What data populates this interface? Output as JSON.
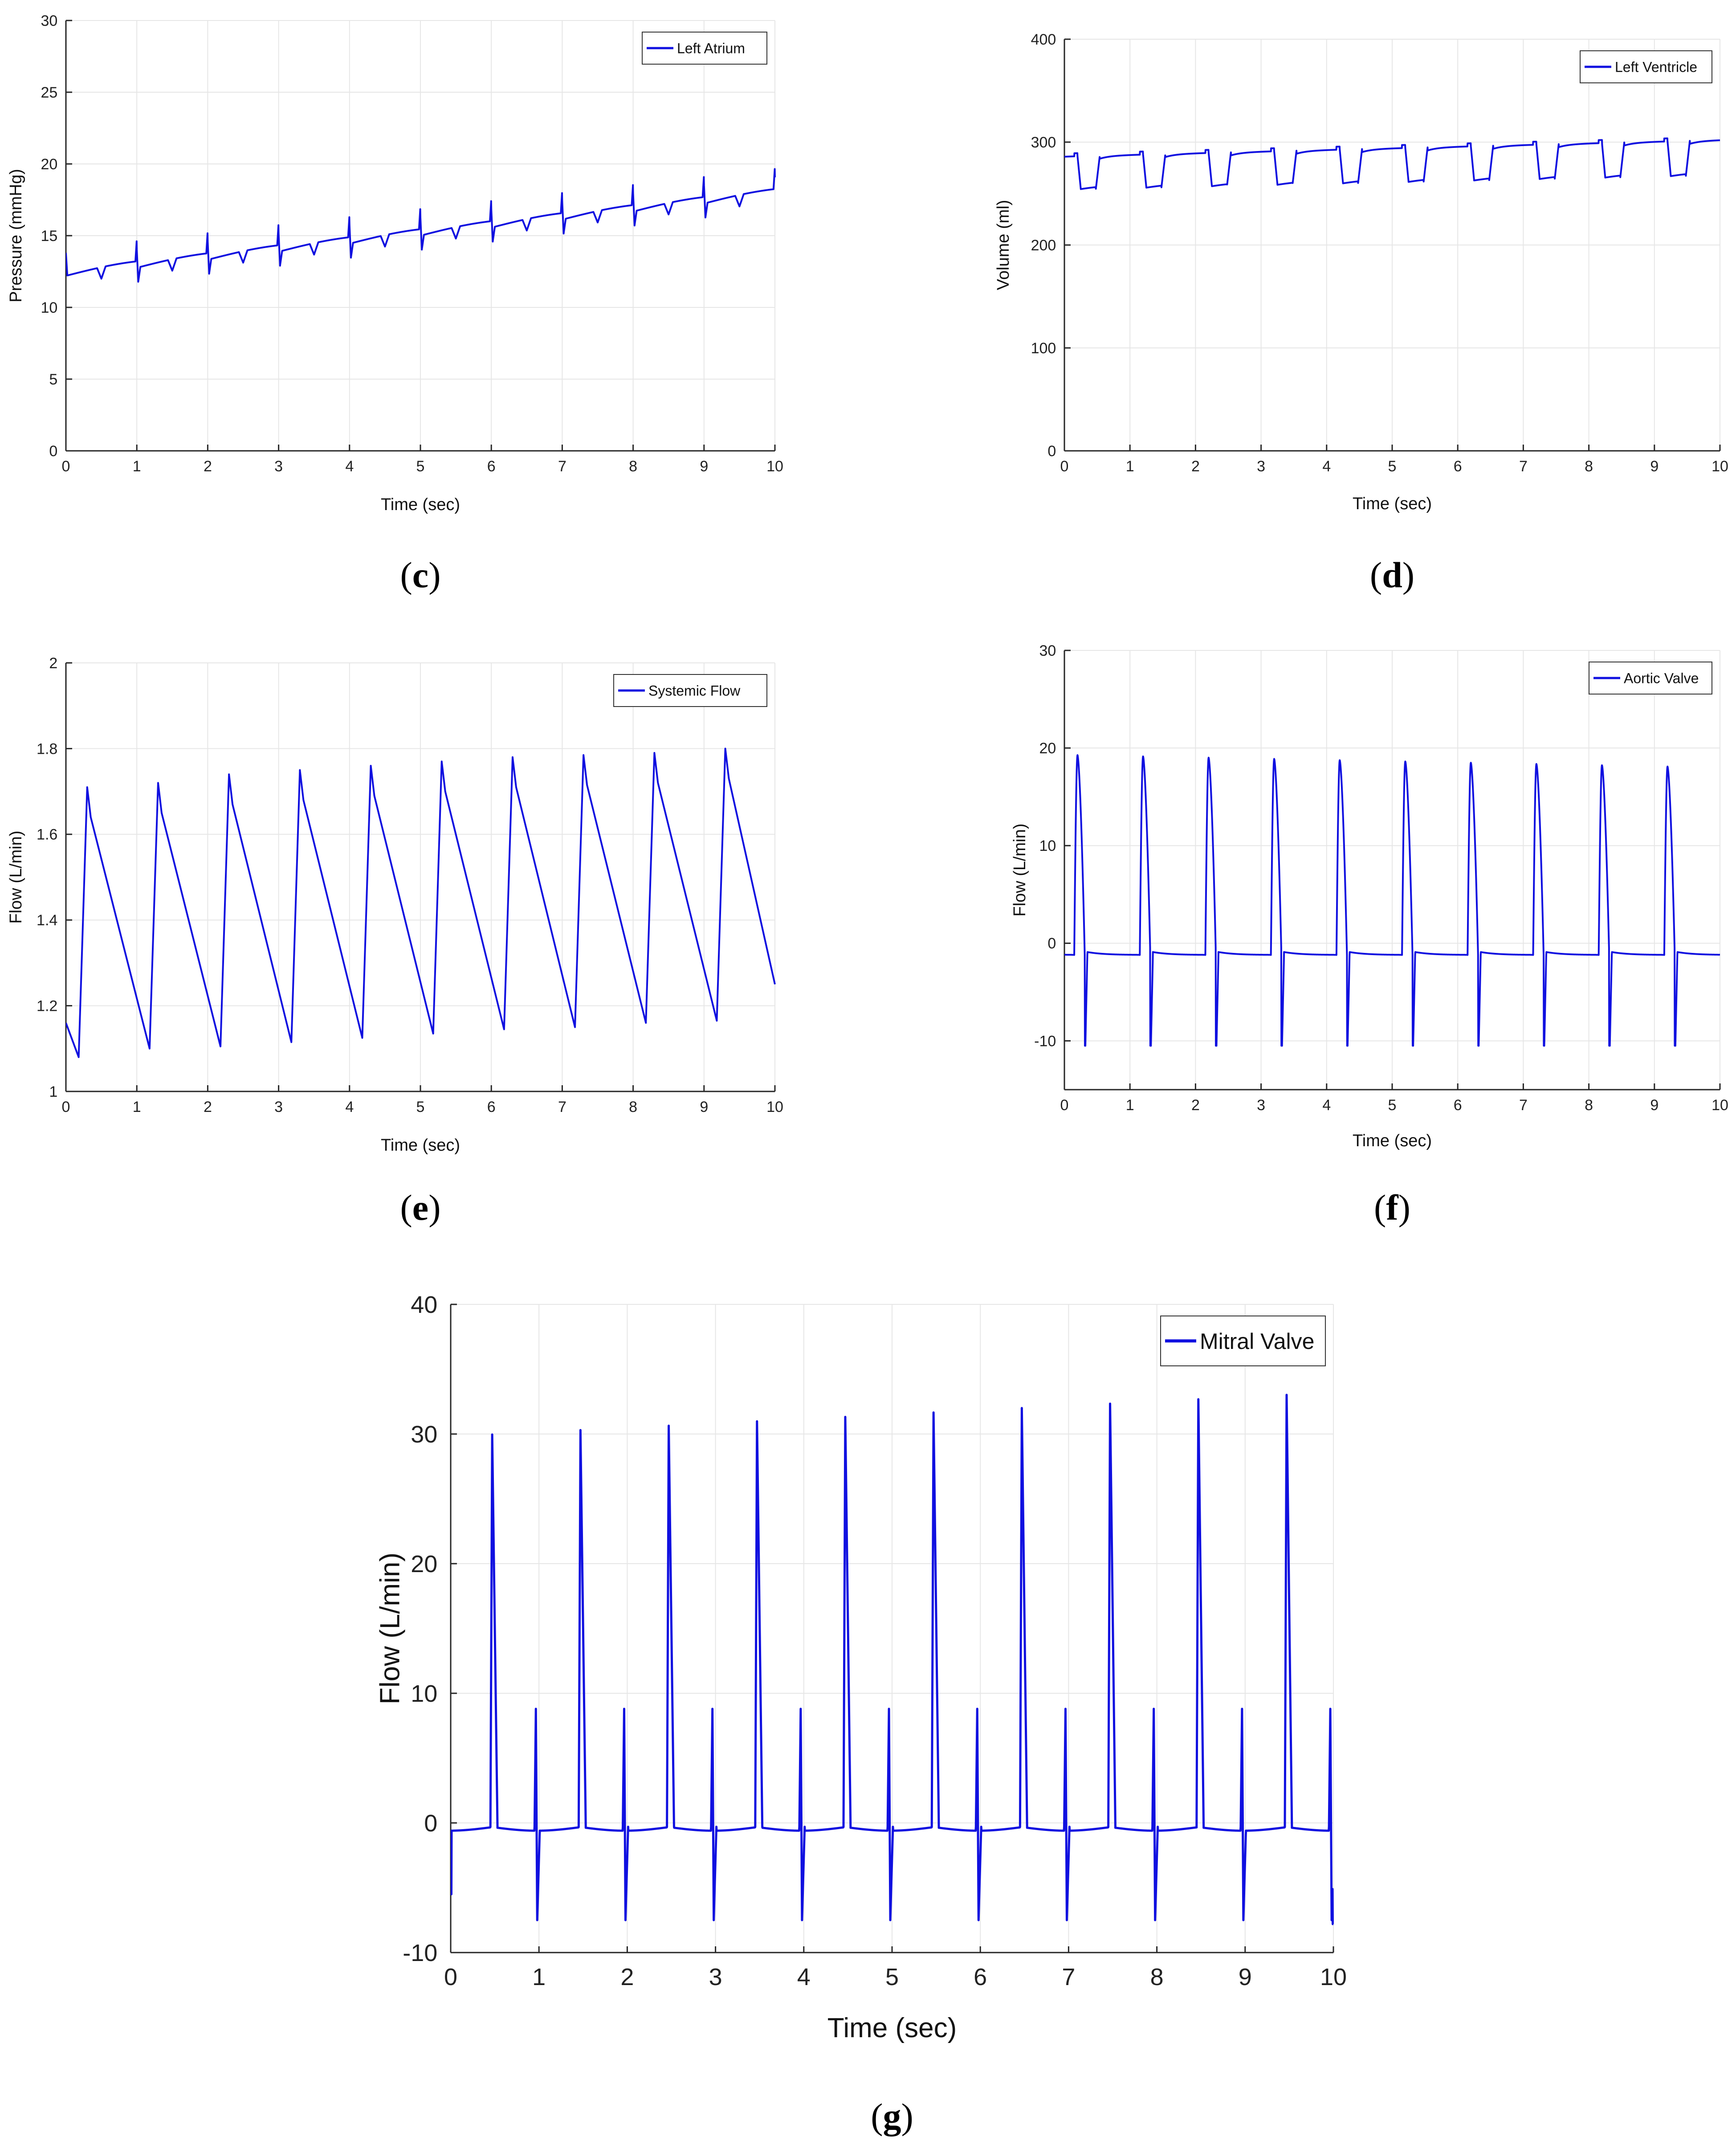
{
  "chart_data": [
    {
      "id": "c",
      "type": "line",
      "caption": "c",
      "xlabel": "Time (sec)",
      "ylabel": "Pressure (mmHg)",
      "xlim": [
        0,
        10
      ],
      "ylim": [
        0,
        30
      ],
      "xticks": [
        0,
        1,
        2,
        3,
        4,
        5,
        6,
        7,
        8,
        9,
        10
      ],
      "yticks": [
        0,
        5,
        10,
        15,
        20,
        25,
        30
      ],
      "grid": true,
      "legend_position": "top-right",
      "series": [
        {
          "name": "Left Atrium",
          "color": "#1010e0",
          "model": {
            "kind": "atrium",
            "start": 12.2,
            "end": 17.8,
            "period": 1.0,
            "spike": 1.6,
            "dip": 1.0
          }
        }
      ]
    },
    {
      "id": "d",
      "type": "line",
      "caption": "d",
      "xlabel": "Time (sec)",
      "ylabel": "Volume (ml)",
      "xlim": [
        0,
        10
      ],
      "ylim": [
        0,
        400
      ],
      "xticks": [
        0,
        1,
        2,
        3,
        4,
        5,
        6,
        7,
        8,
        9,
        10
      ],
      "yticks": [
        0,
        100,
        200,
        300,
        400
      ],
      "grid": true,
      "legend_position": "top-right",
      "series": [
        {
          "name": "Left Ventricle",
          "color": "#1010e0",
          "model": {
            "kind": "ventricle",
            "high_start": 286,
            "high_end": 302,
            "low_start": 254,
            "low_end": 268,
            "period": 1.0
          }
        }
      ]
    },
    {
      "id": "e",
      "type": "line",
      "caption": "e",
      "xlabel": "Time (sec)",
      "ylabel": "Flow (L/min)",
      "xlim": [
        0,
        10
      ],
      "ylim": [
        1,
        2
      ],
      "xticks": [
        0,
        1,
        2,
        3,
        4,
        5,
        6,
        7,
        8,
        9,
        10
      ],
      "yticks": [
        1,
        1.2,
        1.4,
        1.6,
        1.8,
        2
      ],
      "grid": true,
      "legend_position": "top-right",
      "series": [
        {
          "name": "Systemic Flow",
          "color": "#1010e0",
          "model": {
            "kind": "systemic",
            "peaks": [
              [
                0.3,
                1.71
              ],
              [
                1.3,
                1.72
              ],
              [
                2.3,
                1.74
              ],
              [
                3.3,
                1.75
              ],
              [
                4.3,
                1.76
              ],
              [
                5.3,
                1.77
              ],
              [
                6.3,
                1.78
              ],
              [
                7.3,
                1.785
              ],
              [
                8.3,
                1.79
              ],
              [
                9.3,
                1.8
              ]
            ],
            "troughs": [
              [
                0.18,
                1.08
              ],
              [
                1.18,
                1.1
              ],
              [
                2.18,
                1.105
              ],
              [
                3.18,
                1.115
              ],
              [
                4.18,
                1.125
              ],
              [
                5.18,
                1.135
              ],
              [
                6.18,
                1.145
              ],
              [
                7.18,
                1.15
              ],
              [
                8.18,
                1.16
              ],
              [
                9.18,
                1.165
              ]
            ],
            "start": 1.16,
            "end": 1.25
          }
        }
      ]
    },
    {
      "id": "f",
      "type": "line",
      "caption": "f",
      "xlabel": "Time (sec)",
      "ylabel": "Flow (L/min)",
      "xlim": [
        0,
        10
      ],
      "ylim": [
        -15,
        30
      ],
      "xticks": [
        0,
        1,
        2,
        3,
        4,
        5,
        6,
        7,
        8,
        9,
        10
      ],
      "yticks": [
        -10,
        0,
        10,
        20,
        30
      ],
      "grid": true,
      "legend_position": "top-right",
      "series": [
        {
          "name": "Aortic Valve",
          "color": "#1010e0",
          "model": {
            "kind": "aortic",
            "peak_start": 19.3,
            "peak_end": 18.0,
            "baseline": -1.2,
            "neg": -10.5,
            "period": 1.0
          }
        }
      ]
    },
    {
      "id": "g",
      "type": "line",
      "caption": "g",
      "xlabel": "Time (sec)",
      "ylabel": "Flow (L/min)",
      "xlim": [
        0,
        10
      ],
      "ylim": [
        -10,
        40
      ],
      "xticks": [
        0,
        1,
        2,
        3,
        4,
        5,
        6,
        7,
        8,
        9,
        10
      ],
      "yticks": [
        -10,
        0,
        10,
        20,
        30,
        40
      ],
      "grid": true,
      "legend_position": "top-right",
      "series": [
        {
          "name": "Mitral Valve",
          "color": "#1010e0",
          "model": {
            "kind": "mitral",
            "peak_start": 29.8,
            "peak_end": 33.2,
            "small_peak": 8.8,
            "baseline": -0.3,
            "neg": -7.5,
            "period": 1.0
          }
        }
      ]
    }
  ]
}
